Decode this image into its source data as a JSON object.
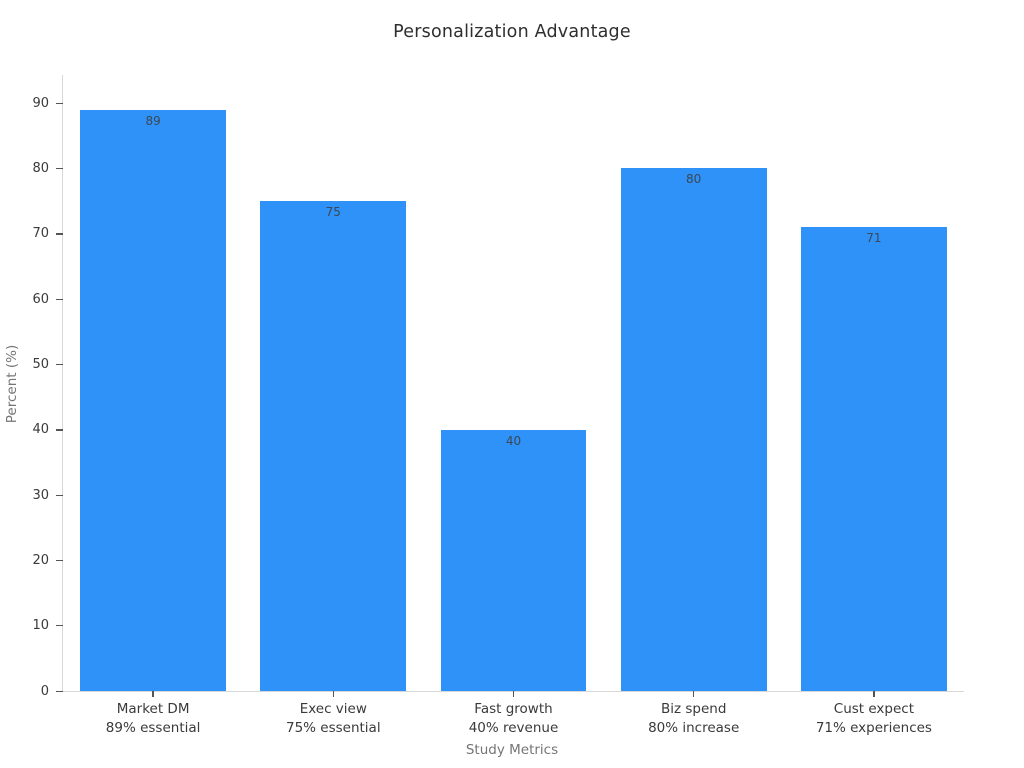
{
  "title": "Personalization Advantage",
  "chart_data": {
    "type": "bar",
    "title": "Personalization Advantage",
    "xlabel": "Study Metrics",
    "ylabel": "Percent (%)",
    "categories": [
      "Market DM",
      "Exec view",
      "Fast growth",
      "Biz spend",
      "Cust expect"
    ],
    "category_sublabels": [
      "89% essential",
      "75% essential",
      "40% revenue",
      "80% increase",
      "71% experiences"
    ],
    "values": [
      89,
      75,
      40,
      80,
      71
    ],
    "bar_value_labels": [
      "89",
      "75",
      "40",
      "80",
      "71"
    ],
    "yticks": [
      0,
      10,
      20,
      30,
      40,
      50,
      60,
      70,
      80,
      90
    ],
    "ylim": [
      0,
      94.3
    ],
    "grid": false,
    "legend_position": "none",
    "bar_color": "#2e92f8",
    "bar_width_fraction": 0.81
  },
  "style": {
    "background": "#ffffff",
    "bar_color": "#2e92f8",
    "spine_color": "#d7d7d7",
    "tick_mark_color": "#555555",
    "tick_label_color": "#3a3a3a",
    "title_color": "#2e2e2e",
    "axis_title_color": "#757575",
    "value_label_color": "#3d4852"
  }
}
